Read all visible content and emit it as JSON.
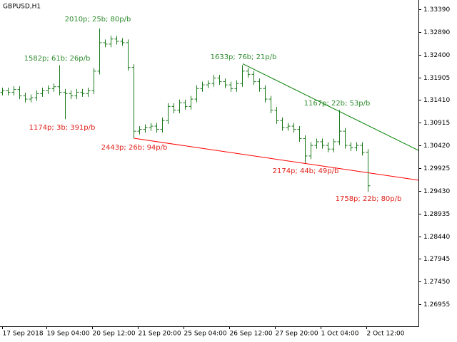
{
  "chart_data": {
    "type": "ohlc",
    "title": "GBPUSD,H1",
    "color": "#1a7a1a",
    "x": [
      0,
      4,
      8,
      12,
      16,
      20,
      24,
      28,
      32,
      36,
      40,
      44,
      48,
      52,
      56,
      60,
      64,
      68,
      72,
      76,
      80,
      84,
      88,
      92,
      96,
      100,
      104,
      108,
      112,
      116,
      120,
      124,
      128,
      132,
      136,
      140,
      144,
      148,
      152,
      156,
      160,
      164,
      168,
      172,
      176,
      180,
      184,
      188,
      192,
      196,
      200,
      204,
      208,
      212,
      216,
      220,
      224,
      228,
      232,
      236,
      240,
      244,
      248,
      252,
      256
    ],
    "open": [
      1.3158,
      1.3161,
      1.3158,
      1.3164,
      1.315,
      1.3143,
      1.3146,
      1.3155,
      1.3161,
      1.3166,
      1.317,
      1.3158,
      1.3155,
      1.315,
      1.3158,
      1.3155,
      1.3161,
      1.3204,
      1.3266,
      1.3263,
      1.3274,
      1.3269,
      1.3266,
      1.3212,
      1.3073,
      1.3077,
      1.3081,
      1.3084,
      1.3077,
      1.3096,
      1.3127,
      1.3119,
      1.3135,
      1.3127,
      1.3143,
      1.3166,
      1.3174,
      1.3177,
      1.3189,
      1.3181,
      1.3174,
      1.3166,
      1.3177,
      1.3204,
      1.3197,
      1.3181,
      1.3166,
      1.3143,
      1.3119,
      1.3096,
      1.3081,
      1.3084,
      1.3077,
      1.3057,
      1.3019,
      1.3042,
      1.305,
      1.3042,
      1.3034,
      1.305,
      1.3073,
      1.3042,
      1.3037,
      1.3042,
      1.3027
    ],
    "high": [
      1.3168,
      1.3168,
      1.3171,
      1.3171,
      1.3157,
      1.3153,
      1.3162,
      1.3168,
      1.3173,
      1.3177,
      1.3217,
      1.3165,
      1.3162,
      1.3165,
      1.3165,
      1.3168,
      1.3211,
      1.3297,
      1.3273,
      1.3281,
      1.3281,
      1.3276,
      1.3273,
      1.3219,
      1.3084,
      1.3088,
      1.3091,
      1.3091,
      1.3103,
      1.3134,
      1.3134,
      1.3142,
      1.3142,
      1.315,
      1.3173,
      1.3181,
      1.3184,
      1.3196,
      1.3196,
      1.3188,
      1.3181,
      1.3184,
      1.3217,
      1.3211,
      1.3204,
      1.3188,
      1.3173,
      1.315,
      1.3126,
      1.3103,
      1.3091,
      1.3091,
      1.3084,
      1.3064,
      1.3049,
      1.3057,
      1.3057,
      1.3049,
      1.3057,
      1.3119,
      1.308,
      1.3049,
      1.3049,
      1.3049,
      1.3034
    ],
    "low": [
      1.3151,
      1.3151,
      1.3151,
      1.3143,
      1.3136,
      1.3136,
      1.3139,
      1.3148,
      1.3154,
      1.3159,
      1.3151,
      1.3099,
      1.3143,
      1.3143,
      1.3148,
      1.3148,
      1.3154,
      1.3197,
      1.3256,
      1.3256,
      1.3262,
      1.3259,
      1.3205,
      1.3057,
      1.3066,
      1.307,
      1.3074,
      1.307,
      1.307,
      1.3089,
      1.3112,
      1.3112,
      1.312,
      1.312,
      1.3136,
      1.3159,
      1.3167,
      1.317,
      1.3174,
      1.3167,
      1.3159,
      1.3159,
      1.317,
      1.319,
      1.3174,
      1.3159,
      1.3136,
      1.3112,
      1.3089,
      1.3074,
      1.3074,
      1.307,
      1.305,
      1.3003,
      1.3012,
      1.3035,
      1.3035,
      1.3027,
      1.3027,
      1.3043,
      1.3035,
      1.303,
      1.303,
      1.302,
      1.2941
    ],
    "close": [
      1.3161,
      1.3158,
      1.3164,
      1.315,
      1.3143,
      1.3146,
      1.3155,
      1.3161,
      1.3166,
      1.317,
      1.3158,
      1.3155,
      1.315,
      1.3158,
      1.3155,
      1.3161,
      1.3204,
      1.3266,
      1.3263,
      1.3274,
      1.3269,
      1.3266,
      1.3212,
      1.3073,
      1.3077,
      1.3081,
      1.3084,
      1.3077,
      1.3096,
      1.3127,
      1.3119,
      1.3135,
      1.3127,
      1.3143,
      1.3166,
      1.3174,
      1.3177,
      1.3189,
      1.3181,
      1.3174,
      1.3166,
      1.3177,
      1.3204,
      1.3197,
      1.3181,
      1.3166,
      1.3143,
      1.3119,
      1.3096,
      1.3081,
      1.3084,
      1.3077,
      1.3057,
      1.3019,
      1.3042,
      1.305,
      1.3042,
      1.3034,
      1.305,
      1.3073,
      1.3042,
      1.3037,
      1.3042,
      1.3027,
      1.2954
    ],
    "xlim": [
      -1.5,
      291.5
    ],
    "ylim": [
      1.26475,
      1.33591
    ],
    "xticks": [
      {
        "value": 0,
        "label": "17 Sep 2018"
      },
      {
        "value": 31,
        "label": "19 Sep 04:00"
      },
      {
        "value": 63,
        "label": "20 Sep 12:00"
      },
      {
        "value": 95,
        "label": "21 Sep 20:00"
      },
      {
        "value": 127,
        "label": "25 Sep 04:00"
      },
      {
        "value": 159,
        "label": "26 Sep 12:00"
      },
      {
        "value": 191,
        "label": "27 Sep 20:00"
      },
      {
        "value": 223,
        "label": "1 Oct 04:00"
      },
      {
        "value": 255,
        "label": "2 Oct 12:00"
      }
    ],
    "yticks": [
      {
        "value": 1.3339,
        "label": "1.33390"
      },
      {
        "value": 1.3289,
        "label": "1.32890"
      },
      {
        "value": 1.324,
        "label": "1.32400"
      },
      {
        "value": 1.31905,
        "label": "1.31905"
      },
      {
        "value": 1.3141,
        "label": "1.31410"
      },
      {
        "value": 1.30915,
        "label": "1.30915"
      },
      {
        "value": 1.3042,
        "label": "1.30420"
      },
      {
        "value": 1.29925,
        "label": "1.29925"
      },
      {
        "value": 1.2943,
        "label": "1.29430"
      },
      {
        "value": 1.28935,
        "label": "1.28935"
      },
      {
        "value": 1.2844,
        "label": "1.28440"
      },
      {
        "value": 1.27945,
        "label": "1.27945"
      },
      {
        "value": 1.2745,
        "label": "1.27450"
      },
      {
        "value": 1.26955,
        "label": "1.26955"
      }
    ],
    "trend_lines": [
      {
        "color": "#008000",
        "x": [
          168.5,
          291.5
        ],
        "y": [
          1.32199,
          1.30311
        ]
      },
      {
        "color": "#ff0000",
        "x": [
          92.5,
          291.5
        ],
        "y": [
          1.30574,
          1.29662
        ]
      }
    ],
    "annotations": [
      {
        "text": "2010p; 25b; 80p/b",
        "color": "#2e8b2e"
      },
      {
        "text": "1582p; 61b; 26p/b",
        "color": "#2e8b2e"
      },
      {
        "text": "1174p; 3b; 391p/b",
        "color": "#e0201a"
      },
      {
        "text": "2443p; 26b; 94p/b",
        "color": "#e0201a"
      },
      {
        "text": "1633p; 76b; 21p/b",
        "color": "#2e8b2e"
      },
      {
        "text": "1167p; 22b; 53p/b",
        "color": "#2e8b2e"
      },
      {
        "text": "2174p; 44b; 49p/b",
        "color": "#e0201a"
      },
      {
        "text": "1758p; 22b; 80p/b",
        "color": "#e0201a"
      }
    ]
  }
}
